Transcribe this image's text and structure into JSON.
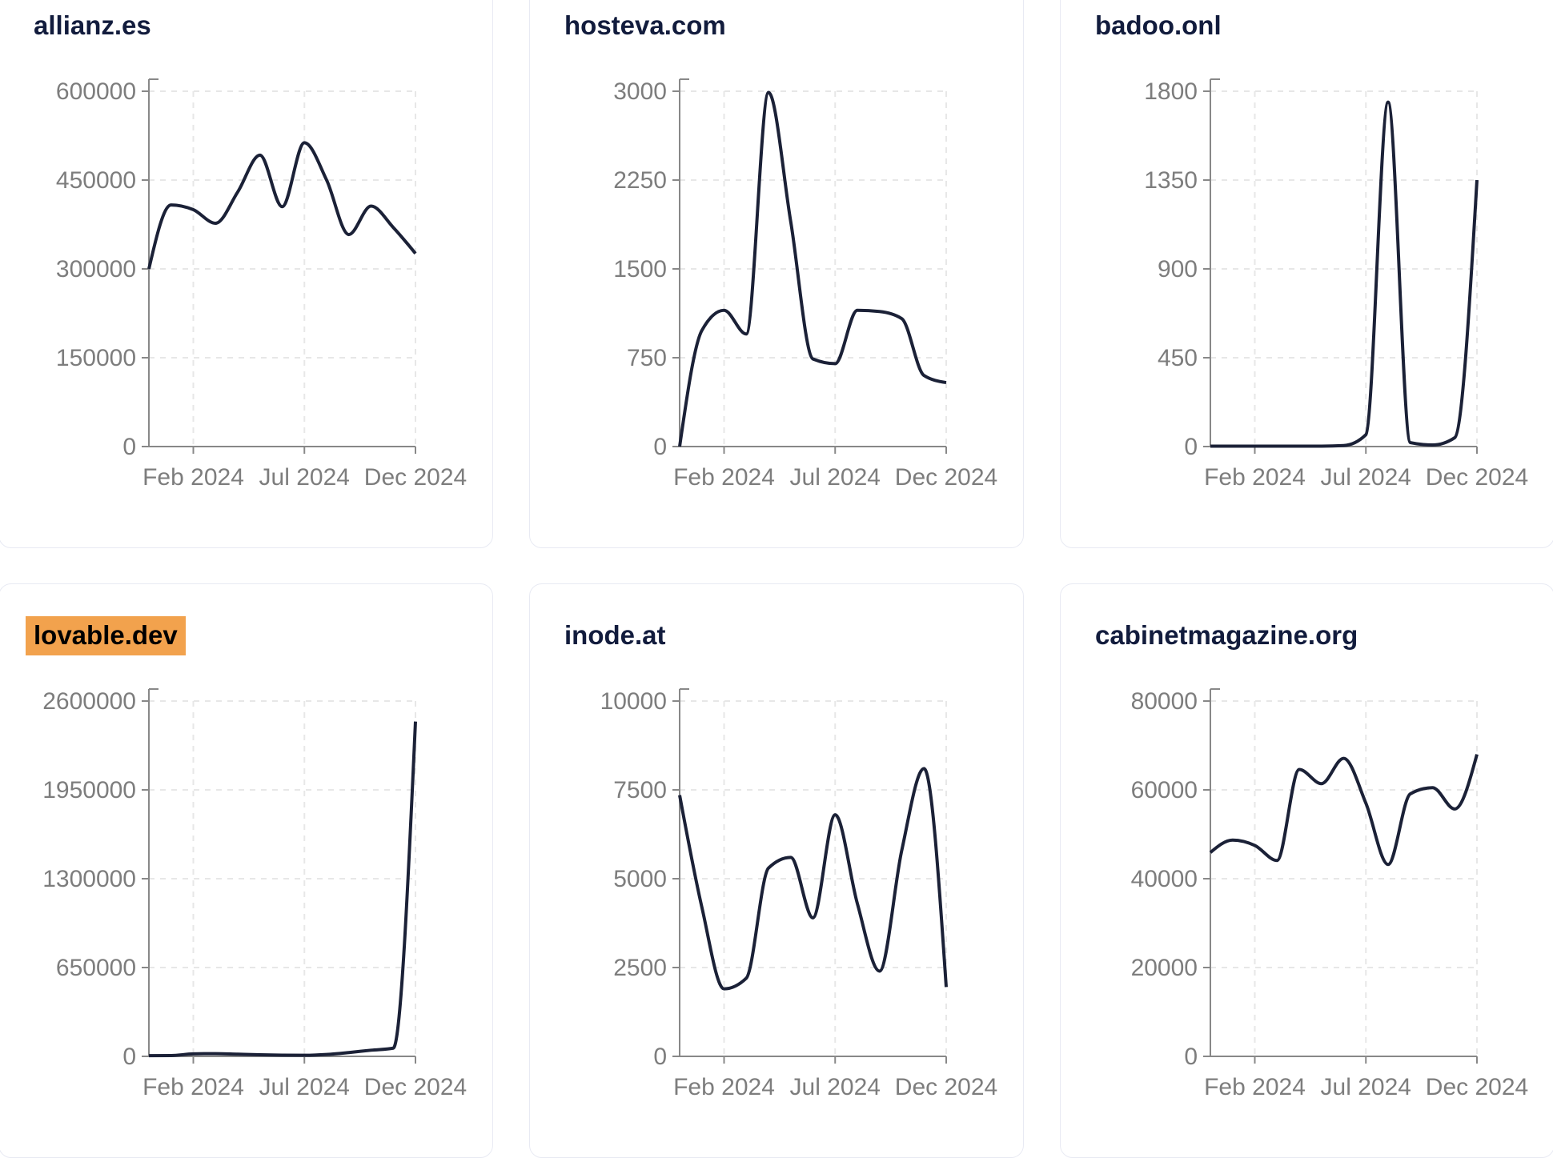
{
  "page": {
    "background": "#ffffff"
  },
  "style": {
    "line_color": "#1b2137",
    "title_color": "#121c3d",
    "tick_label_color": "#7d7d7d",
    "axis_color": "#888888",
    "grid_color": "#e7e7e7",
    "card_border": "#e8eaf3",
    "card_background": "#ffffff",
    "highlight_color": "#f2a24d"
  },
  "x_axis": {
    "tick_labels": [
      "Feb 2024",
      "Jul 2024",
      "Dec 2024"
    ],
    "tick_month_indices": [
      2,
      7,
      12
    ]
  },
  "chart_data": [
    {
      "type": "line",
      "title": "allianz.es",
      "highlighted": false,
      "ylim": [
        0,
        600000
      ],
      "y_ticks": [
        "0",
        "150000",
        "300000",
        "450000",
        "600000"
      ],
      "x": [
        "Dec 2023",
        "Jan 2024",
        "Feb 2024",
        "Mar 2024",
        "Apr 2024",
        "May 2024",
        "Jun 2024",
        "Jul 2024",
        "Aug 2024",
        "Sep 2024",
        "Oct 2024",
        "Nov 2024",
        "Dec 2024"
      ],
      "xlabel": "",
      "ylabel": "",
      "legend": "none",
      "grid": "dashed",
      "values": [
        300000,
        408000,
        400000,
        377000,
        430000,
        492000,
        405000,
        513000,
        450000,
        358000,
        406000,
        370000,
        326000
      ]
    },
    {
      "type": "line",
      "title": "hosteva.com",
      "highlighted": false,
      "ylim": [
        0,
        3000
      ],
      "y_ticks": [
        "0",
        "750",
        "1500",
        "2250",
        "3000"
      ],
      "x": [
        "Dec 2023",
        "Jan 2024",
        "Feb 2024",
        "Mar 2024",
        "Apr 2024",
        "May 2024",
        "Jun 2024",
        "Jul 2024",
        "Aug 2024",
        "Sep 2024",
        "Oct 2024",
        "Nov 2024",
        "Dec 2024"
      ],
      "xlabel": "",
      "ylabel": "",
      "legend": "none",
      "grid": "dashed",
      "values": [
        0,
        980,
        1150,
        950,
        2990,
        1900,
        740,
        700,
        1150,
        1140,
        1080,
        600,
        540
      ]
    },
    {
      "type": "line",
      "title": "badoo.onl",
      "highlighted": false,
      "ylim": [
        0,
        1800
      ],
      "y_ticks": [
        "0",
        "450",
        "900",
        "1350",
        "1800"
      ],
      "x": [
        "Dec 2023",
        "Jan 2024",
        "Feb 2024",
        "Mar 2024",
        "Apr 2024",
        "May 2024",
        "Jun 2024",
        "Jul 2024",
        "Aug 2024",
        "Sep 2024",
        "Oct 2024",
        "Nov 2024",
        "Dec 2024"
      ],
      "xlabel": "",
      "ylabel": "",
      "legend": "none",
      "grid": "dashed",
      "values": [
        2,
        2,
        2,
        2,
        2,
        2,
        5,
        60,
        1745,
        20,
        8,
        45,
        1350
      ]
    },
    {
      "type": "line",
      "title": "lovable.dev",
      "highlighted": true,
      "ylim": [
        0,
        2600000
      ],
      "y_ticks": [
        "0",
        "650000",
        "1300000",
        "1950000",
        "2600000"
      ],
      "x": [
        "Dec 2023",
        "Jan 2024",
        "Feb 2024",
        "Mar 2024",
        "Apr 2024",
        "May 2024",
        "Jun 2024",
        "Jul 2024",
        "Aug 2024",
        "Sep 2024",
        "Oct 2024",
        "Nov 2024",
        "Dec 2024"
      ],
      "xlabel": "",
      "ylabel": "",
      "legend": "none",
      "grid": "dashed",
      "values": [
        5000,
        6000,
        18000,
        20000,
        16000,
        12000,
        9000,
        8000,
        14000,
        28000,
        45000,
        60000,
        2450000
      ]
    },
    {
      "type": "line",
      "title": "inode.at",
      "highlighted": false,
      "ylim": [
        0,
        10000
      ],
      "y_ticks": [
        "0",
        "2500",
        "5000",
        "7500",
        "10000"
      ],
      "x": [
        "Dec 2023",
        "Jan 2024",
        "Feb 2024",
        "Mar 2024",
        "Apr 2024",
        "May 2024",
        "Jun 2024",
        "Jul 2024",
        "Aug 2024",
        "Sep 2024",
        "Oct 2024",
        "Nov 2024",
        "Dec 2024"
      ],
      "xlabel": "",
      "ylabel": "",
      "legend": "none",
      "grid": "dashed",
      "values": [
        7350,
        4200,
        1900,
        2200,
        5300,
        5600,
        3900,
        6800,
        4300,
        2400,
        5800,
        8100,
        1950
      ]
    },
    {
      "type": "line",
      "title": "cabinetmagazine.org",
      "highlighted": false,
      "ylim": [
        0,
        80000
      ],
      "y_ticks": [
        "0",
        "20000",
        "40000",
        "60000",
        "80000"
      ],
      "x": [
        "Dec 2023",
        "Jan 2024",
        "Feb 2024",
        "Mar 2024",
        "Apr 2024",
        "May 2024",
        "Jun 2024",
        "Jul 2024",
        "Aug 2024",
        "Sep 2024",
        "Oct 2024",
        "Nov 2024",
        "Dec 2024"
      ],
      "xlabel": "",
      "ylabel": "",
      "legend": "none",
      "grid": "dashed",
      "values": [
        45900,
        48700,
        47500,
        44100,
        64600,
        61400,
        67100,
        57000,
        43200,
        59100,
        60500,
        55700,
        68000
      ]
    }
  ]
}
